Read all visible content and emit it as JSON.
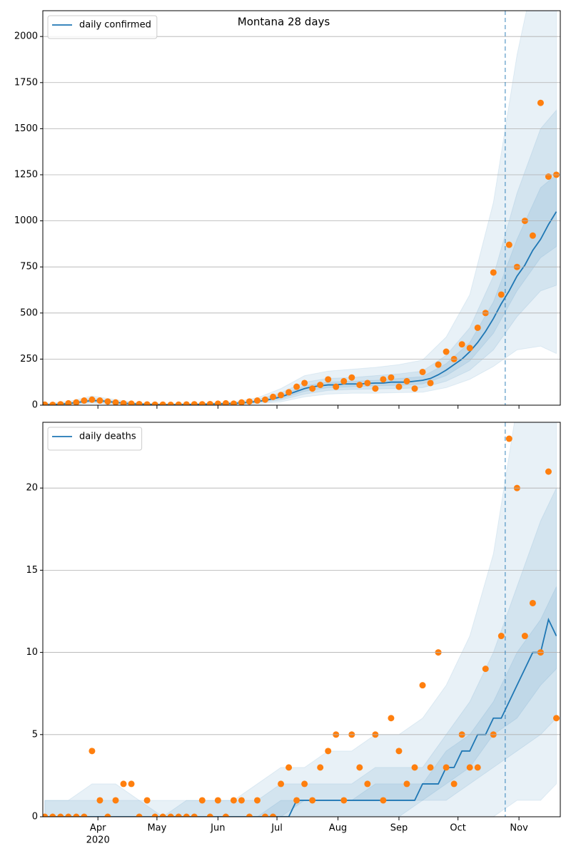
{
  "chart_data": [
    {
      "type": "line",
      "title": "Montana 28 days",
      "xlim": [
        3,
        266
      ],
      "ylim": [
        0,
        2140
      ],
      "xticks": [
        31,
        61,
        92,
        122,
        153,
        184,
        214,
        245
      ],
      "yticks": [
        0,
        250,
        500,
        750,
        1000,
        1250,
        1500,
        1750,
        2000
      ],
      "grid": true,
      "legend": "upper left",
      "x": [
        4,
        8,
        12,
        16,
        20,
        24,
        28,
        32,
        36,
        40,
        44,
        48,
        52,
        56,
        60,
        64,
        68,
        72,
        76,
        80,
        84,
        88,
        92,
        96,
        100,
        104,
        108,
        112,
        116,
        120,
        124,
        128,
        132,
        136,
        140,
        144,
        148,
        152,
        156,
        160,
        164,
        168,
        172,
        176,
        180,
        184,
        188,
        192,
        196,
        200,
        204,
        208,
        212,
        216,
        220,
        224,
        228,
        232,
        236,
        240,
        244,
        248,
        252,
        256,
        260,
        264
      ],
      "series": [
        {
          "name": "daily confirmed",
          "color": "#1f77b4",
          "values": [
            3,
            3,
            5,
            9,
            14,
            20,
            25,
            24,
            20,
            15,
            11,
            8,
            6,
            5,
            4,
            3,
            3,
            3,
            4,
            4,
            5,
            6,
            7,
            8,
            10,
            12,
            16,
            20,
            26,
            35,
            45,
            60,
            75,
            90,
            100,
            105,
            110,
            110,
            115,
            115,
            115,
            118,
            120,
            120,
            125,
            125,
            125,
            130,
            135,
            145,
            165,
            190,
            220,
            250,
            290,
            340,
            400,
            470,
            550,
            620,
            700,
            760,
            840,
            900,
            980,
            1050
          ]
        }
      ],
      "points": {
        "color": "#ff7f0e",
        "values": [
          3,
          2,
          5,
          10,
          15,
          25,
          30,
          25,
          20,
          15,
          10,
          8,
          6,
          4,
          3,
          3,
          2,
          3,
          4,
          5,
          5,
          6,
          8,
          10,
          8,
          15,
          20,
          25,
          30,
          45,
          55,
          70,
          100,
          120,
          90,
          110,
          140,
          100,
          130,
          150,
          110,
          120,
          90,
          140,
          150,
          100,
          130,
          90,
          180,
          120,
          220,
          290,
          250,
          330,
          310,
          420,
          500,
          720,
          600,
          870,
          750,
          1000,
          920,
          1640,
          1240,
          1250
        ]
      },
      "bands": {
        "color": "#1f77b4",
        "opacity": 0.1,
        "x": [
          4,
          16,
          28,
          40,
          52,
          64,
          76,
          88,
          100,
          112,
          124,
          136,
          148,
          160,
          172,
          184,
          196,
          208,
          220,
          232,
          244,
          256,
          264
        ],
        "ranges": [
          {
            "lower": [
              2,
              7,
              20,
              12,
              5,
              2,
              3,
              5,
              6,
              16,
              36,
              75,
              95,
              100,
              105,
              108,
              115,
              160,
              240,
              390,
              620,
              800,
              860
            ],
            "upper": [
              4,
              11,
              30,
              18,
              7,
              4,
              5,
              7,
              10,
              24,
              55,
              105,
              125,
              130,
              135,
              145,
              155,
              225,
              340,
              560,
              900,
              1180,
              1250
            ]
          },
          {
            "lower": [
              1,
              5,
              15,
              9,
              3,
              1,
              2,
              3,
              4,
              12,
              28,
              60,
              80,
              85,
              88,
              90,
              95,
              130,
              190,
              300,
              480,
              620,
              650
            ],
            "upper": [
              6,
              14,
              38,
              22,
              9,
              5,
              7,
              9,
              13,
              30,
              68,
              125,
              145,
              150,
              160,
              170,
              185,
              270,
              420,
              700,
              1150,
              1500,
              1600
            ]
          },
          {
            "lower": [
              0,
              3,
              10,
              5,
              2,
              0,
              1,
              1,
              2,
              7,
              18,
              45,
              60,
              65,
              65,
              68,
              70,
              95,
              140,
              210,
              300,
              320,
              280
            ],
            "upper": [
              9,
              20,
              50,
              30,
              12,
              7,
              9,
              12,
              18,
              40,
              90,
              160,
              185,
              195,
              205,
              220,
              245,
              370,
              600,
              1100,
              1900,
              2500,
              2600
            ]
          }
        ]
      },
      "forecast_start": 238
    },
    {
      "type": "line",
      "xlim": [
        3,
        266
      ],
      "ylim": [
        0,
        24
      ],
      "xticks": [
        {
          "value": 31,
          "label": "Apr"
        },
        {
          "value": 61,
          "label": "May"
        },
        {
          "value": 92,
          "label": "Jun"
        },
        {
          "value": 122,
          "label": "Jul"
        },
        {
          "value": 153,
          "label": "Aug"
        },
        {
          "value": 184,
          "label": "Sep"
        },
        {
          "value": 214,
          "label": "Oct"
        },
        {
          "value": 245,
          "label": "Nov"
        }
      ],
      "year_label": "2020",
      "yticks": [
        0,
        5,
        10,
        15,
        20
      ],
      "grid": true,
      "legend": "upper left",
      "x": [
        4,
        8,
        12,
        16,
        20,
        24,
        28,
        32,
        36,
        40,
        44,
        48,
        52,
        56,
        60,
        64,
        68,
        72,
        76,
        80,
        84,
        88,
        92,
        96,
        100,
        104,
        108,
        112,
        116,
        120,
        124,
        128,
        132,
        136,
        140,
        144,
        148,
        152,
        156,
        160,
        164,
        168,
        172,
        176,
        180,
        184,
        188,
        192,
        196,
        200,
        204,
        208,
        212,
        216,
        220,
        224,
        228,
        232,
        236,
        240,
        244,
        248,
        252,
        256,
        260,
        264
      ],
      "series": [
        {
          "name": "daily deaths",
          "color": "#1f77b4",
          "values": [
            0,
            0,
            0,
            0,
            0,
            0,
            0,
            0,
            0,
            0,
            0,
            0,
            0,
            0,
            0,
            0,
            0,
            0,
            0,
            0,
            0,
            0,
            0,
            0,
            0,
            0,
            0,
            0,
            0,
            0,
            0,
            0,
            1,
            1,
            1,
            1,
            1,
            1,
            1,
            1,
            1,
            1,
            1,
            1,
            1,
            1,
            1,
            1,
            2,
            2,
            2,
            3,
            3,
            4,
            4,
            5,
            5,
            6,
            6,
            7,
            8,
            9,
            10,
            10,
            12,
            11
          ]
        }
      ],
      "points": {
        "color": "#ff7f0e",
        "values": [
          0,
          0,
          0,
          0,
          0,
          0,
          4,
          1,
          0,
          1,
          2,
          2,
          0,
          1,
          0,
          0,
          0,
          0,
          0,
          0,
          1,
          0,
          1,
          0,
          1,
          1,
          0,
          1,
          0,
          0,
          2,
          3,
          1,
          2,
          1,
          3,
          4,
          5,
          1,
          5,
          3,
          2,
          5,
          1,
          6,
          4,
          2,
          3,
          8,
          3,
          10,
          3,
          2,
          5,
          3,
          3,
          9,
          5,
          11,
          23,
          20,
          11,
          13,
          10,
          21,
          6
        ]
      },
      "bands": {
        "color": "#1f77b4",
        "opacity": 0.1,
        "x": [
          4,
          16,
          28,
          40,
          52,
          64,
          76,
          88,
          100,
          112,
          124,
          136,
          148,
          160,
          172,
          184,
          196,
          208,
          220,
          232,
          244,
          256,
          264
        ],
        "ranges": [
          {
            "lower": [
              0,
              0,
              0,
              0,
              0,
              0,
              0,
              0,
              0,
              0,
              0,
              1,
              1,
              1,
              1,
              1,
              1,
              2,
              3,
              5,
              6,
              8,
              9
            ],
            "upper": [
              0,
              0,
              0,
              0,
              0,
              0,
              0,
              0,
              0,
              0,
              1,
              1,
              1,
              1,
              2,
              2,
              2,
              4,
              5,
              7,
              10,
              12,
              14
            ]
          },
          {
            "lower": [
              0,
              0,
              0,
              0,
              0,
              0,
              0,
              0,
              0,
              0,
              0,
              0,
              0,
              0,
              0,
              0,
              1,
              1,
              2,
              3,
              4,
              5,
              6
            ],
            "upper": [
              1,
              1,
              1,
              1,
              1,
              0,
              1,
              1,
              1,
              1,
              2,
              2,
              2,
              2,
              3,
              3,
              3,
              5,
              7,
              10,
              14,
              18,
              20
            ]
          },
          {
            "lower": [
              0,
              0,
              0,
              0,
              0,
              0,
              0,
              0,
              0,
              0,
              0,
              0,
              0,
              0,
              0,
              0,
              0,
              0,
              0,
              0,
              1,
              1,
              2
            ],
            "upper": [
              1,
              1,
              2,
              2,
              1,
              1,
              1,
              1,
              1,
              2,
              3,
              3,
              4,
              4,
              5,
              5,
              6,
              8,
              11,
              16,
              25,
              30,
              30
            ]
          }
        ]
      },
      "forecast_start": 238
    }
  ]
}
